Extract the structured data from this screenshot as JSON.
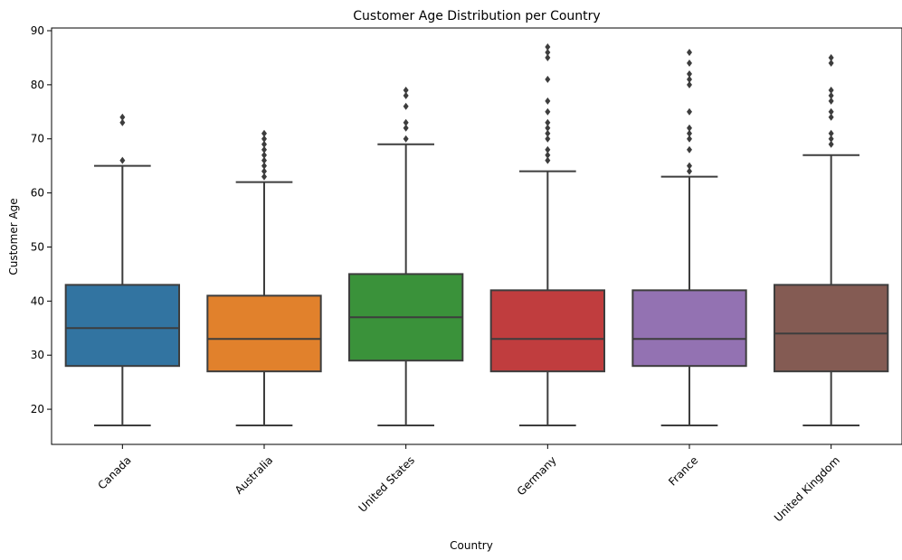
{
  "chart_data": {
    "type": "box",
    "title": "Customer Age Distribution per Country",
    "xlabel": "Country",
    "ylabel": "Customer Age",
    "ylim": [
      13.5,
      90.5
    ],
    "yticks": [
      20,
      30,
      40,
      50,
      60,
      70,
      80,
      90
    ],
    "grid": false,
    "legend": "none",
    "categories": [
      "Canada",
      "Australia",
      "United States",
      "Germany",
      "France",
      "United Kingdom"
    ],
    "boxes": [
      {
        "category": "Canada",
        "color": "#3274a1",
        "whisker_low": 17,
        "q1": 28,
        "median": 35,
        "q3": 43,
        "whisker_high": 65,
        "outliers": [
          66,
          73,
          74
        ]
      },
      {
        "category": "Australia",
        "color": "#e1812c",
        "whisker_low": 17,
        "q1": 27,
        "median": 33,
        "q3": 41,
        "whisker_high": 62,
        "outliers": [
          63,
          64,
          65,
          66,
          67,
          68,
          69,
          70,
          71
        ]
      },
      {
        "category": "United States",
        "color": "#3a923a",
        "whisker_low": 17,
        "q1": 29,
        "median": 37,
        "q3": 45,
        "whisker_high": 69,
        "outliers": [
          70,
          72,
          73,
          76,
          78,
          79
        ]
      },
      {
        "category": "Germany",
        "color": "#c03d3e",
        "whisker_low": 17,
        "q1": 27,
        "median": 33,
        "q3": 42,
        "whisker_high": 64,
        "outliers": [
          66,
          67,
          68,
          70,
          71,
          72,
          73,
          75,
          77,
          81,
          85,
          86,
          87
        ]
      },
      {
        "category": "France",
        "color": "#9372b2",
        "whisker_low": 17,
        "q1": 28,
        "median": 33,
        "q3": 42,
        "whisker_high": 63,
        "outliers": [
          64,
          65,
          68,
          70,
          71,
          72,
          75,
          80,
          81,
          82,
          84,
          86
        ]
      },
      {
        "category": "United Kingdom",
        "color": "#845b53",
        "whisker_low": 17,
        "q1": 27,
        "median": 34,
        "q3": 43,
        "whisker_high": 67,
        "outliers": [
          69,
          70,
          71,
          74,
          75,
          77,
          78,
          79,
          84,
          85
        ]
      }
    ]
  }
}
